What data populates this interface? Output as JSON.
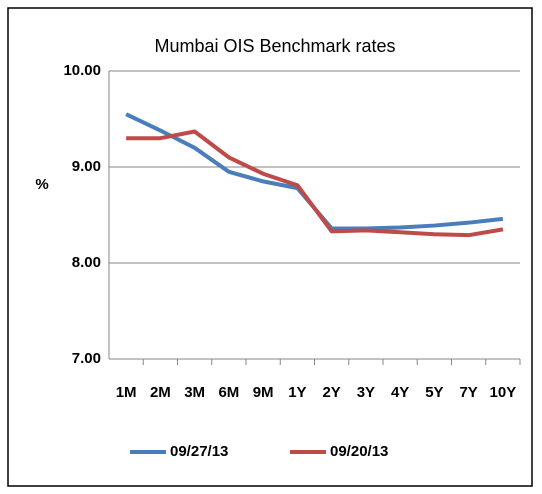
{
  "chart_data": {
    "type": "line",
    "title": "Mumbai OIS Benchmark rates",
    "y_label": "%",
    "categories": [
      "1M",
      "2M",
      "3M",
      "6M",
      "9M",
      "1Y",
      "2Y",
      "3Y",
      "4Y",
      "5Y",
      "7Y",
      "10Y"
    ],
    "series": [
      {
        "name": "09/27/13",
        "color": "#4a7ebb",
        "values": [
          9.55,
          9.38,
          9.2,
          8.95,
          8.85,
          8.78,
          8.36,
          8.36,
          8.37,
          8.39,
          8.42,
          8.46
        ]
      },
      {
        "name": "09/20/13",
        "color": "#be4b48",
        "values": [
          9.3,
          9.3,
          9.37,
          9.1,
          8.93,
          8.81,
          8.33,
          8.34,
          8.32,
          8.3,
          8.29,
          8.35
        ]
      }
    ],
    "ylim": [
      7,
      10
    ],
    "yticks": [
      {
        "value": 7,
        "label": "7.00"
      },
      {
        "value": 8,
        "label": "8.00"
      },
      {
        "value": 9,
        "label": "9.00"
      },
      {
        "value": 10,
        "label": "10.00"
      }
    ],
    "grid": true,
    "legend": "bottom"
  }
}
